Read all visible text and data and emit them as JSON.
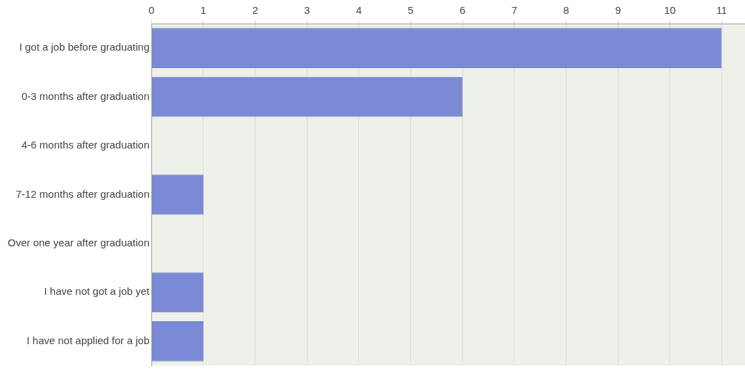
{
  "chart_data": {
    "type": "bar",
    "orientation": "horizontal",
    "categories": [
      "I got a job before graduating",
      "0-3 months after graduation",
      "4-6 months after graduation",
      "7-12 months after graduation",
      "Over one year after graduation",
      "I have not got a job yet",
      "I have not applied for a job"
    ],
    "values": [
      11,
      6,
      0,
      1,
      0,
      1,
      1
    ],
    "color": "#7b8ad6",
    "xlim": [
      0,
      11.45
    ],
    "xticks": [
      0,
      1,
      2,
      3,
      4,
      5,
      6,
      7,
      8,
      9,
      10,
      11
    ],
    "grid": "x",
    "legend": false
  }
}
